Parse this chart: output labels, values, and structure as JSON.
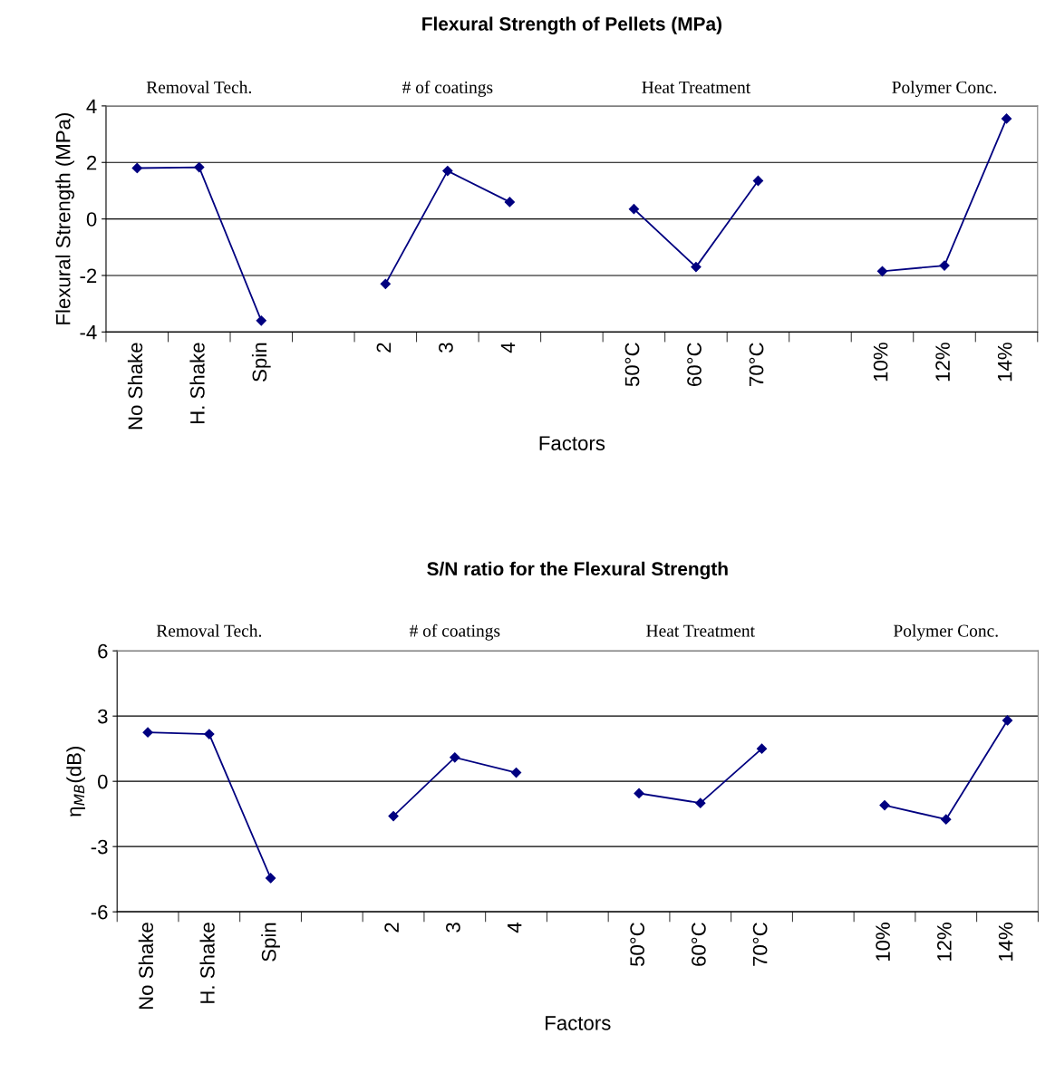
{
  "chart_data": [
    {
      "type": "line",
      "title": "Flexural Strength of Pellets (MPa)",
      "xlabel": "Factors",
      "ylabel": "Flexural Strength (MPa)",
      "annotations": [
        "Removal Tech.",
        "# of coatings",
        "Heat Treatment",
        "Polymer Conc."
      ],
      "categories": [
        "No Shake",
        "H. Shake",
        "Spin",
        null,
        "2",
        "3",
        "4",
        null,
        "50°C",
        "60°C",
        "70°C",
        null,
        "10%",
        "12%",
        "14%"
      ],
      "series": [
        {
          "color": "#000080",
          "values": [
            1.8,
            1.83,
            -3.6,
            null,
            -2.3,
            1.7,
            0.6,
            null,
            0.35,
            -1.7,
            1.35,
            null,
            -1.85,
            -1.65,
            3.55
          ]
        }
      ],
      "ylim": [
        -4,
        4
      ],
      "yticks": [
        -4,
        -2,
        0,
        2,
        4
      ],
      "grid": "y",
      "marker": "diamond",
      "line_style": "solid"
    },
    {
      "type": "line",
      "title": "S/N ratio for the Flexural Strength",
      "xlabel": "Factors",
      "ylabel": "η$_{MB}$(dB)",
      "annotations": [
        "Removal Tech.",
        "# of coatings",
        "Heat Treatment",
        "Polymer Conc."
      ],
      "categories": [
        "No Shake",
        "H. Shake",
        "Spin",
        null,
        "2",
        "3",
        "4",
        null,
        "50°C",
        "60°C",
        "70°C",
        null,
        "10%",
        "12%",
        "14%"
      ],
      "series": [
        {
          "color": "#000080",
          "values": [
            2.25,
            2.17,
            -4.45,
            null,
            -1.6,
            1.1,
            0.4,
            null,
            -0.55,
            -1.0,
            1.5,
            null,
            -1.1,
            -1.75,
            2.8
          ]
        }
      ],
      "ylim": [
        -6,
        6
      ],
      "yticks": [
        -6,
        -3,
        0,
        3,
        6
      ],
      "grid": "y",
      "marker": "diamond",
      "line_style": "solid"
    }
  ]
}
